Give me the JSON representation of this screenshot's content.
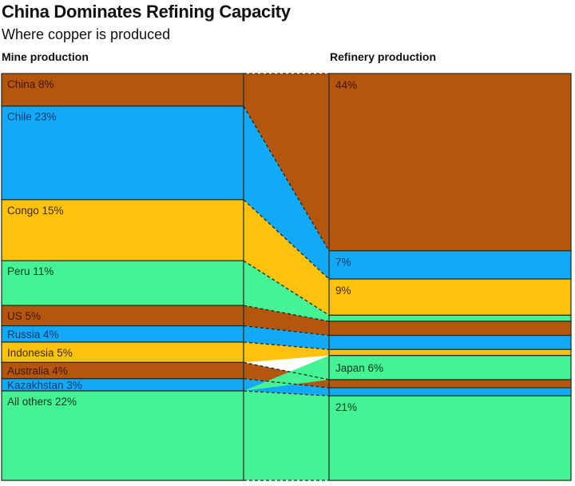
{
  "chart_data": {
    "type": "sankey",
    "title": "China Dominates Refining Capacity",
    "subtitle": "Where copper is produced",
    "left_header": "Mine production",
    "right_header": "Refinery production",
    "colors": {
      "brown": "#b5560f",
      "blue": "#12aaf7",
      "yellow": "#fec20c",
      "green": "#45f294",
      "text_brown": "#3d1604",
      "text_blue": "#0e3a6b",
      "text_yellow": "#3d2a02",
      "text_green": "#0d3a20",
      "border": "#1e2b1e"
    },
    "mine_production": [
      {
        "country": "China",
        "share": 8,
        "label": "China 8%",
        "color": "brown"
      },
      {
        "country": "Chile",
        "share": 23,
        "label": "Chile 23%",
        "color": "blue"
      },
      {
        "country": "Congo",
        "share": 15,
        "label": "Congo 15%",
        "color": "yellow"
      },
      {
        "country": "Peru",
        "share": 11,
        "label": "Peru 11%",
        "color": "green"
      },
      {
        "country": "US",
        "share": 5,
        "label": "US 5%",
        "color": "brown"
      },
      {
        "country": "Russia",
        "share": 4,
        "label": "Russia 4%",
        "color": "blue"
      },
      {
        "country": "Indonesia",
        "share": 5,
        "label": "Indonesia 5%",
        "color": "yellow"
      },
      {
        "country": "Australia",
        "share": 4,
        "label": "Australia 4%",
        "color": "brown"
      },
      {
        "country": "Kazakhstan",
        "share": 3,
        "label": "Kazakhstan 3%",
        "color": "blue"
      },
      {
        "country": "All others",
        "share": 22,
        "label": "All others 22%",
        "color": "green"
      }
    ],
    "refinery_production": [
      {
        "country": "China",
        "share": 44,
        "label": "44%",
        "color": "brown"
      },
      {
        "country": "Chile",
        "share": 7,
        "label": "7%",
        "color": "blue"
      },
      {
        "country": "Congo",
        "share": 9,
        "label": "9%",
        "color": "yellow"
      },
      {
        "country": "Peru",
        "share": 1.5,
        "label": "",
        "color": "green"
      },
      {
        "country": "US",
        "share": 3.5,
        "label": "",
        "color": "brown"
      },
      {
        "country": "Russia",
        "share": 3.5,
        "label": "",
        "color": "blue"
      },
      {
        "country": "Indonesia",
        "share": 1.5,
        "label": "",
        "color": "yellow"
      },
      {
        "country": "Japan",
        "share": 6,
        "label": "Japan 6%",
        "color": "green"
      },
      {
        "country": "Australia",
        "share": 2,
        "label": "",
        "color": "brown"
      },
      {
        "country": "Kazakhstan",
        "share": 2,
        "label": "",
        "color": "blue"
      },
      {
        "country": "All others",
        "share": 21,
        "label": "21%",
        "color": "green"
      }
    ]
  }
}
